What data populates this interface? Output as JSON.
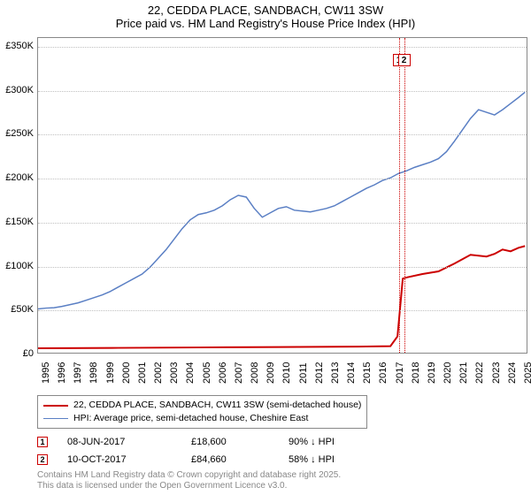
{
  "title": {
    "line1": "22, CEDDA PLACE, SANDBACH, CW11 3SW",
    "line2": "Price paid vs. HM Land Registry's House Price Index (HPI)"
  },
  "chart": {
    "type": "line",
    "background_color": "#ffffff",
    "grid_color": "#c0c0c0",
    "border_color": "#888888",
    "x_axis": {
      "min": 1995,
      "max": 2025.5,
      "ticks": [
        1995,
        1996,
        1997,
        1998,
        1999,
        2000,
        2001,
        2002,
        2003,
        2004,
        2005,
        2006,
        2007,
        2008,
        2009,
        2010,
        2011,
        2012,
        2013,
        2014,
        2015,
        2016,
        2017,
        2018,
        2019,
        2020,
        2021,
        2022,
        2023,
        2024,
        2025
      ],
      "label_fontsize": 11,
      "label_rotation": -90
    },
    "y_axis": {
      "min": 0,
      "max": 360000,
      "ticks": [
        0,
        50000,
        100000,
        150000,
        200000,
        250000,
        300000,
        350000
      ],
      "tick_labels": [
        "£0",
        "£50K",
        "£100K",
        "£150K",
        "£200K",
        "£250K",
        "£300K",
        "£350K"
      ],
      "label_fontsize": 11
    },
    "series": [
      {
        "id": "hpi",
        "label": "HPI: Average price, semi-detached house, Cheshire East",
        "color": "#5a7fc4",
        "line_width": 1.5,
        "points": [
          [
            1995,
            50000
          ],
          [
            1995.5,
            51000
          ],
          [
            1996,
            51500
          ],
          [
            1996.5,
            53000
          ],
          [
            1997,
            55000
          ],
          [
            1997.5,
            57000
          ],
          [
            1998,
            60000
          ],
          [
            1998.5,
            63000
          ],
          [
            1999,
            66000
          ],
          [
            1999.5,
            70000
          ],
          [
            2000,
            75000
          ],
          [
            2000.5,
            80000
          ],
          [
            2001,
            85000
          ],
          [
            2001.5,
            90000
          ],
          [
            2002,
            98000
          ],
          [
            2002.5,
            108000
          ],
          [
            2003,
            118000
          ],
          [
            2003.5,
            130000
          ],
          [
            2004,
            142000
          ],
          [
            2004.5,
            152000
          ],
          [
            2005,
            158000
          ],
          [
            2005.5,
            160000
          ],
          [
            2006,
            163000
          ],
          [
            2006.5,
            168000
          ],
          [
            2007,
            175000
          ],
          [
            2007.5,
            180000
          ],
          [
            2008,
            178000
          ],
          [
            2008.5,
            165000
          ],
          [
            2009,
            155000
          ],
          [
            2009.5,
            160000
          ],
          [
            2010,
            165000
          ],
          [
            2010.5,
            167000
          ],
          [
            2011,
            163000
          ],
          [
            2011.5,
            162000
          ],
          [
            2012,
            161000
          ],
          [
            2012.5,
            163000
          ],
          [
            2013,
            165000
          ],
          [
            2013.5,
            168000
          ],
          [
            2014,
            173000
          ],
          [
            2014.5,
            178000
          ],
          [
            2015,
            183000
          ],
          [
            2015.5,
            188000
          ],
          [
            2016,
            192000
          ],
          [
            2016.5,
            197000
          ],
          [
            2017,
            200000
          ],
          [
            2017.5,
            205000
          ],
          [
            2018,
            208000
          ],
          [
            2018.5,
            212000
          ],
          [
            2019,
            215000
          ],
          [
            2019.5,
            218000
          ],
          [
            2020,
            222000
          ],
          [
            2020.5,
            230000
          ],
          [
            2021,
            242000
          ],
          [
            2021.5,
            255000
          ],
          [
            2022,
            268000
          ],
          [
            2022.5,
            278000
          ],
          [
            2023,
            275000
          ],
          [
            2023.5,
            272000
          ],
          [
            2024,
            278000
          ],
          [
            2024.5,
            285000
          ],
          [
            2025,
            292000
          ],
          [
            2025.4,
            298000
          ]
        ]
      },
      {
        "id": "price_paid",
        "label": "22, CEDDA PLACE, SANDBACH, CW11 3SW (semi-detached house)",
        "color": "#cc0000",
        "line_width": 2,
        "points": [
          [
            1995,
            5000
          ],
          [
            2000,
            5500
          ],
          [
            2005,
            6000
          ],
          [
            2010,
            6500
          ],
          [
            2015,
            7000
          ],
          [
            2017,
            7500
          ],
          [
            2017.44,
            18600
          ],
          [
            2017.77,
            84660
          ],
          [
            2018,
            86000
          ],
          [
            2019,
            90000
          ],
          [
            2020,
            93000
          ],
          [
            2021,
            102000
          ],
          [
            2022,
            112000
          ],
          [
            2023,
            110000
          ],
          [
            2023.5,
            113000
          ],
          [
            2024,
            118000
          ],
          [
            2024.5,
            116000
          ],
          [
            2025,
            120000
          ],
          [
            2025.4,
            122000
          ]
        ]
      }
    ],
    "markers": [
      {
        "id": 1,
        "label": "1",
        "x": 2017.44,
        "color": "#cc0000",
        "y_pos": 0.07
      },
      {
        "id": 2,
        "label": "2",
        "x": 2017.77,
        "color": "#cc0000",
        "y_pos": 0.07
      }
    ]
  },
  "legend": {
    "border_color": "#888888",
    "rows": [
      {
        "color": "#cc0000",
        "width": 2,
        "text": "22, CEDDA PLACE, SANDBACH, CW11 3SW (semi-detached house)"
      },
      {
        "color": "#5a7fc4",
        "width": 1.5,
        "text": "HPI: Average price, semi-detached house, Cheshire East"
      }
    ]
  },
  "sales": [
    {
      "marker": "1",
      "marker_color": "#cc0000",
      "date": "08-JUN-2017",
      "price": "£18,600",
      "pct": "90% ↓ HPI"
    },
    {
      "marker": "2",
      "marker_color": "#cc0000",
      "date": "10-OCT-2017",
      "price": "£84,660",
      "pct": "58% ↓ HPI"
    }
  ],
  "footer": {
    "line1": "Contains HM Land Registry data © Crown copyright and database right 2025.",
    "line2": "This data is licensed under the Open Government Licence v3.0."
  }
}
